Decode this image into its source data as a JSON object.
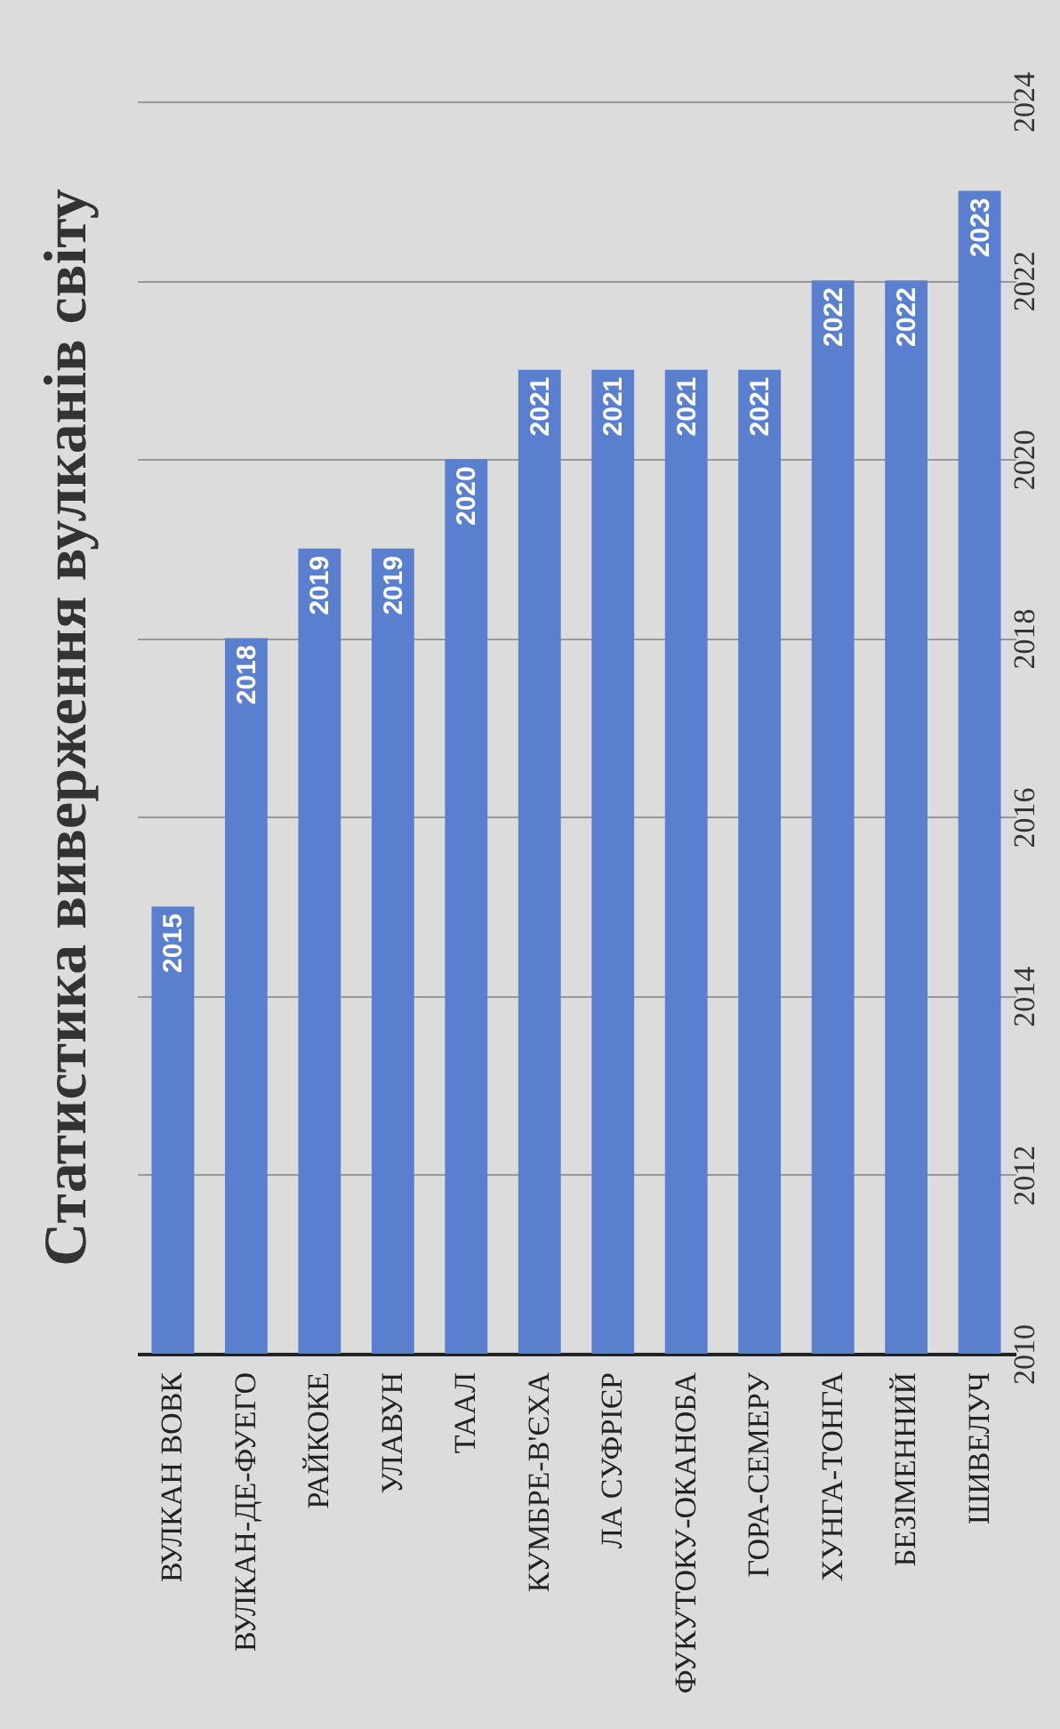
{
  "chart_data": {
    "type": "bar",
    "title": "Статистика виверження вулканів світу",
    "categories": [
      "ВУЛКАН ВОВК",
      "ВУЛКАН-ДЕ-ФУЕГО",
      "РАЙКОКЕ",
      "УЛАВУН",
      "ТААЛ",
      "КУМБРЕ-В'ЄХА",
      "ЛА СУФРІЄР",
      "ФУКУТОКУ-ОКАНОБА",
      "ГОРА-СЕМЕРУ",
      "ХУНГА-ТОНГА",
      "БЕЗІМЕННИЙ",
      "ШИВЕЛУЧ"
    ],
    "values": [
      2015,
      2018,
      2019,
      2019,
      2020,
      2021,
      2021,
      2021,
      2021,
      2022,
      2022,
      2023
    ],
    "color": "#5a7fcf",
    "ylim": [
      2010,
      2024
    ],
    "yticks": [
      2010,
      2012,
      2014,
      2016,
      2018,
      2020,
      2022,
      2024
    ],
    "grid": "y",
    "data_labels": true
  }
}
